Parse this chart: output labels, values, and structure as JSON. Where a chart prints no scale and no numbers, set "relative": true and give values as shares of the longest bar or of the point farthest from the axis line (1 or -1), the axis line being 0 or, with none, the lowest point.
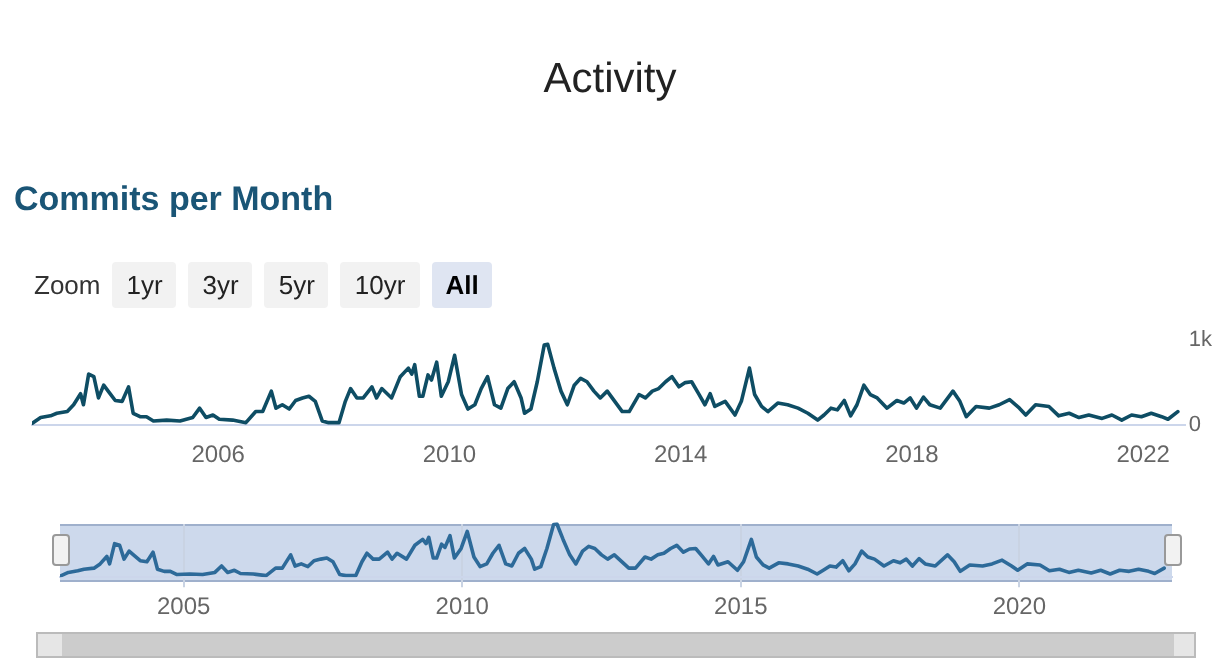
{
  "chart_data": [
    {
      "type": "line",
      "title": "Commits per Month",
      "annotations": [
        "Activity",
        "Zoom",
        "1yr",
        "3yr",
        "5yr",
        "10yr",
        "All"
      ],
      "x": [
        2002.78,
        2002.93,
        2003.1,
        2003.21,
        2003.39,
        2003.5,
        2003.62,
        2003.67,
        2003.76,
        2003.85,
        2003.93,
        2004.02,
        2004.13,
        2004.22,
        2004.34,
        2004.45,
        2004.53,
        2004.65,
        2004.76,
        2004.88,
        2005.11,
        2005.34,
        2005.56,
        2005.68,
        2005.79,
        2005.91,
        2006.02,
        2006.25,
        2006.48,
        2006.65,
        2006.77,
        2006.92,
        2007.0,
        2007.11,
        2007.23,
        2007.34,
        2007.46,
        2007.57,
        2007.68,
        2007.8,
        2007.91,
        2008.09,
        2008.2,
        2008.29,
        2008.4,
        2008.51,
        2008.66,
        2008.74,
        2008.83,
        2009.0,
        2009.15,
        2009.29,
        2009.35,
        2009.4,
        2009.48,
        2009.54,
        2009.63,
        2009.69,
        2009.78,
        2009.86,
        2009.98,
        2010.09,
        2010.21,
        2010.32,
        2010.44,
        2010.55,
        2010.66,
        2010.78,
        2010.89,
        2011.01,
        2011.12,
        2011.24,
        2011.3,
        2011.41,
        2011.52,
        2011.64,
        2011.7,
        2011.81,
        2011.93,
        2012.04,
        2012.16,
        2012.27,
        2012.38,
        2012.5,
        2012.61,
        2012.73,
        2012.99,
        2013.11,
        2013.28,
        2013.39,
        2013.51,
        2013.62,
        2013.74,
        2013.85,
        2013.97,
        2014.08,
        2014.19,
        2014.31,
        2014.42,
        2014.51,
        2014.59,
        2014.77,
        2014.94,
        2015.05,
        2015.19,
        2015.28,
        2015.4,
        2015.51,
        2015.68,
        2015.85,
        2016.03,
        2016.2,
        2016.37,
        2016.48,
        2016.6,
        2016.71,
        2016.83,
        2016.94,
        2017.05,
        2017.17,
        2017.28,
        2017.4,
        2017.57,
        2017.74,
        2017.86,
        2017.97,
        2018.08,
        2018.2,
        2018.31,
        2018.49,
        2018.71,
        2018.83,
        2018.94,
        2019.11,
        2019.34,
        2019.51,
        2019.69,
        2019.86,
        2019.97,
        2020.14,
        2020.37,
        2020.54,
        2020.72,
        2020.89,
        2021.06,
        2021.29,
        2021.46,
        2021.63,
        2021.8,
        2021.97,
        2022.14,
        2022.32,
        2022.43,
        2022.6
      ],
      "series": [
        {
          "color": "#0e4d64",
          "values": [
            20,
            90,
            110,
            140,
            160,
            240,
            370,
            240,
            600,
            570,
            320,
            470,
            370,
            290,
            280,
            450,
            140,
            100,
            100,
            50,
            60,
            50,
            90,
            200,
            90,
            120,
            70,
            60,
            30,
            160,
            160,
            400,
            200,
            240,
            190,
            290,
            320,
            340,
            280,
            50,
            30,
            30,
            280,
            430,
            320,
            320,
            450,
            320,
            430,
            320,
            570,
            670,
            600,
            710,
            340,
            340,
            590,
            530,
            740,
            340,
            510,
            820,
            360,
            190,
            240,
            430,
            570,
            240,
            200,
            430,
            510,
            320,
            140,
            190,
            510,
            940,
            950,
            670,
            400,
            240,
            470,
            550,
            510,
            400,
            320,
            400,
            160,
            160,
            360,
            320,
            400,
            430,
            510,
            570,
            450,
            500,
            510,
            370,
            240,
            370,
            220,
            280,
            120,
            280,
            670,
            360,
            220,
            160,
            260,
            240,
            200,
            140,
            60,
            120,
            200,
            180,
            290,
            110,
            240,
            470,
            360,
            320,
            200,
            290,
            260,
            320,
            200,
            330,
            240,
            200,
            400,
            280,
            100,
            220,
            200,
            240,
            300,
            200,
            120,
            240,
            220,
            110,
            140,
            90,
            120,
            80,
            120,
            60,
            120,
            100,
            140,
            100,
            70,
            160
          ]
        }
      ],
      "xlim": [
        2002.78,
        2022.72
      ],
      "xticks": [
        2006,
        2010,
        2014,
        2018,
        2022
      ],
      "ylim": [
        0,
        1000
      ],
      "yticks": [
        0,
        {
          "value": 1000,
          "label": "1k"
        }
      ],
      "marker": "none",
      "line_style": "solid"
    },
    {
      "type": "line",
      "relative": true,
      "x": [
        2002.78,
        2002.93,
        2003.1,
        2003.21,
        2003.39,
        2003.5,
        2003.62,
        2003.67,
        2003.76,
        2003.85,
        2003.93,
        2004.02,
        2004.13,
        2004.22,
        2004.34,
        2004.45,
        2004.53,
        2004.65,
        2004.76,
        2004.88,
        2005.11,
        2005.34,
        2005.56,
        2005.68,
        2005.79,
        2005.91,
        2006.02,
        2006.25,
        2006.48,
        2006.65,
        2006.77,
        2006.92,
        2007.0,
        2007.11,
        2007.23,
        2007.34,
        2007.46,
        2007.57,
        2007.68,
        2007.8,
        2007.91,
        2008.09,
        2008.2,
        2008.29,
        2008.4,
        2008.51,
        2008.66,
        2008.74,
        2008.83,
        2009.0,
        2009.15,
        2009.29,
        2009.35,
        2009.4,
        2009.48,
        2009.54,
        2009.63,
        2009.69,
        2009.78,
        2009.86,
        2009.98,
        2010.09,
        2010.21,
        2010.32,
        2010.44,
        2010.55,
        2010.66,
        2010.78,
        2010.89,
        2011.01,
        2011.12,
        2011.24,
        2011.3,
        2011.41,
        2011.52,
        2011.64,
        2011.7,
        2011.81,
        2011.93,
        2012.04,
        2012.16,
        2012.27,
        2012.38,
        2012.5,
        2012.61,
        2012.73,
        2012.99,
        2013.11,
        2013.28,
        2013.39,
        2013.51,
        2013.62,
        2013.74,
        2013.85,
        2013.97,
        2014.08,
        2014.19,
        2014.31,
        2014.42,
        2014.51,
        2014.59,
        2014.77,
        2014.94,
        2015.05,
        2015.19,
        2015.28,
        2015.4,
        2015.51,
        2015.68,
        2015.85,
        2016.03,
        2016.2,
        2016.37,
        2016.48,
        2016.6,
        2016.71,
        2016.83,
        2016.94,
        2017.05,
        2017.17,
        2017.28,
        2017.4,
        2017.57,
        2017.74,
        2017.86,
        2017.97,
        2018.08,
        2018.2,
        2018.31,
        2018.49,
        2018.71,
        2018.83,
        2018.94,
        2019.11,
        2019.34,
        2019.51,
        2019.69,
        2019.86,
        2019.97,
        2020.14,
        2020.37,
        2020.54,
        2020.72,
        2020.89,
        2021.06,
        2021.29,
        2021.46,
        2021.63,
        2021.8,
        2021.97,
        2022.14,
        2022.32,
        2022.43,
        2022.6
      ],
      "series": [
        {
          "color": "#2d6a99",
          "values": [
            0.02,
            0.09,
            0.12,
            0.15,
            0.17,
            0.25,
            0.39,
            0.25,
            0.63,
            0.6,
            0.34,
            0.49,
            0.39,
            0.31,
            0.29,
            0.47,
            0.15,
            0.11,
            0.11,
            0.05,
            0.06,
            0.05,
            0.09,
            0.21,
            0.09,
            0.13,
            0.07,
            0.06,
            0.03,
            0.17,
            0.17,
            0.42,
            0.21,
            0.25,
            0.2,
            0.31,
            0.34,
            0.36,
            0.29,
            0.05,
            0.03,
            0.03,
            0.29,
            0.45,
            0.34,
            0.34,
            0.47,
            0.34,
            0.45,
            0.34,
            0.6,
            0.71,
            0.63,
            0.75,
            0.36,
            0.36,
            0.62,
            0.56,
            0.78,
            0.36,
            0.54,
            0.86,
            0.38,
            0.2,
            0.25,
            0.45,
            0.6,
            0.25,
            0.21,
            0.45,
            0.54,
            0.34,
            0.15,
            0.2,
            0.54,
            0.99,
            1,
            0.71,
            0.42,
            0.25,
            0.49,
            0.58,
            0.54,
            0.42,
            0.34,
            0.42,
            0.17,
            0.17,
            0.38,
            0.34,
            0.42,
            0.45,
            0.54,
            0.6,
            0.47,
            0.53,
            0.54,
            0.39,
            0.25,
            0.39,
            0.23,
            0.29,
            0.13,
            0.29,
            0.71,
            0.38,
            0.23,
            0.17,
            0.27,
            0.25,
            0.21,
            0.15,
            0.06,
            0.13,
            0.21,
            0.19,
            0.31,
            0.12,
            0.25,
            0.49,
            0.38,
            0.34,
            0.21,
            0.31,
            0.27,
            0.34,
            0.21,
            0.35,
            0.25,
            0.21,
            0.42,
            0.29,
            0.11,
            0.23,
            0.21,
            0.25,
            0.32,
            0.21,
            0.13,
            0.25,
            0.23,
            0.12,
            0.15,
            0.09,
            0.13,
            0.08,
            0.13,
            0.06,
            0.13,
            0.11,
            0.15,
            0.11,
            0.07,
            0.17
          ]
        }
      ],
      "xlim": [
        2002.78,
        2022.74
      ],
      "xticks": [
        2005,
        2010,
        2015,
        2020
      ],
      "tick_labels": "x",
      "grid": "x",
      "marker": "none",
      "line_style": "solid"
    }
  ]
}
